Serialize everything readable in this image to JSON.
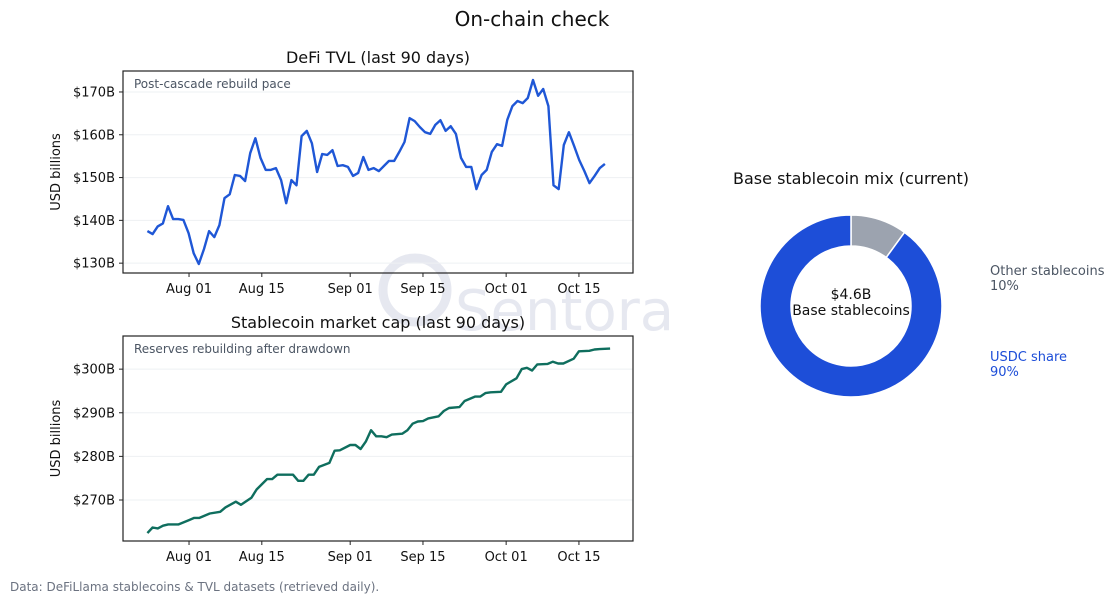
{
  "title": "On-chain check",
  "footer": "Data: DeFiLlama stablecoins & TVL datasets (retrieved daily).",
  "watermark": "Sentora",
  "colors": {
    "tvl": "#1f57d6",
    "stable": "#0f6e5e",
    "usdc": "#1d4ed8",
    "other": "#9ca3af",
    "grid": "#eef0f3"
  },
  "chart_data": [
    {
      "type": "line",
      "title": "DeFi TVL (last 90 days)",
      "annotation": "Post-cascade rebuild pace",
      "ylabel": "USD billions",
      "xlabel": "",
      "start_date": "Jul 24",
      "x_unit": "days since start",
      "xlim": [
        -4.7,
        93.4
      ],
      "ylim": [
        127.7,
        174.9
      ],
      "yticks": [
        130,
        140,
        150,
        160,
        170
      ],
      "ytick_labels": [
        "$130B",
        "$140B",
        "$150B",
        "$160B",
        "$170B"
      ],
      "xticks": [
        8,
        22,
        39,
        53,
        69,
        83
      ],
      "xtick_labels": [
        "Aug 01",
        "Aug 15",
        "Sep 01",
        "Sep 15",
        "Oct 01",
        "Oct 15"
      ],
      "grid": true,
      "series": [
        {
          "name": "DeFi TVL",
          "span_days": 88,
          "values": [
            137.5,
            136.8,
            138.6,
            139.3,
            143.3,
            140.3,
            140.3,
            140.1,
            137.0,
            132.3,
            129.8,
            133.3,
            137.5,
            136.1,
            138.9,
            145.2,
            146.1,
            150.6,
            150.4,
            149.2,
            155.7,
            159.2,
            154.6,
            151.8,
            151.8,
            152.2,
            149.4,
            144.0,
            149.4,
            148.2,
            159.7,
            160.9,
            158.0,
            151.3,
            155.5,
            155.3,
            156.4,
            152.7,
            152.9,
            152.5,
            150.4,
            151.1,
            154.8,
            151.8,
            152.2,
            151.5,
            152.7,
            153.9,
            153.9,
            156.0,
            158.3,
            163.9,
            163.2,
            161.8,
            160.6,
            160.2,
            162.3,
            163.4,
            160.9,
            162.0,
            160.2,
            154.6,
            152.5,
            152.5,
            147.3,
            150.6,
            151.8,
            156.0,
            157.8,
            157.4,
            163.5,
            166.7,
            167.9,
            167.4,
            168.6,
            172.8,
            169.1,
            170.7,
            166.7,
            148.2,
            147.3,
            157.6,
            160.6,
            157.4,
            154.1,
            151.5,
            148.7,
            150.4,
            152.2,
            153.2
          ]
        }
      ]
    },
    {
      "type": "line",
      "title": "Stablecoin market cap (last 90 days)",
      "annotation": "Reserves rebuilding after drawdown",
      "ylabel": "USD billions",
      "xlabel": "",
      "start_date": "Jul 24",
      "x_unit": "days since start",
      "xlim": [
        -4.7,
        93.4
      ],
      "ylim": [
        260.6,
        307.6
      ],
      "yticks": [
        270,
        280,
        290,
        300
      ],
      "ytick_labels": [
        "$270B",
        "$280B",
        "$290B",
        "$300B"
      ],
      "xticks": [
        8,
        22,
        39,
        53,
        69,
        83
      ],
      "xtick_labels": [
        "Aug 01",
        "Aug 15",
        "Sep 01",
        "Sep 15",
        "Oct 01",
        "Oct 15"
      ],
      "grid": true,
      "series": [
        {
          "name": "Stablecoin market cap",
          "points": [
            [
              0,
              262.4
            ],
            [
              1,
              263.7
            ],
            [
              2,
              263.5
            ],
            [
              3,
              264.1
            ],
            [
              4,
              264.4
            ],
            [
              6,
              264.4
            ],
            [
              8,
              265.4
            ],
            [
              9,
              265.9
            ],
            [
              10,
              265.9
            ],
            [
              12,
              266.9
            ],
            [
              14,
              267.3
            ],
            [
              15,
              268.3
            ],
            [
              17,
              269.6
            ],
            [
              18,
              268.9
            ],
            [
              20,
              270.5
            ],
            [
              21,
              272.4
            ],
            [
              23,
              274.8
            ],
            [
              24,
              274.8
            ],
            [
              25,
              275.8
            ],
            [
              28,
              275.8
            ],
            [
              29,
              274.4
            ],
            [
              30,
              274.4
            ],
            [
              31,
              275.8
            ],
            [
              32,
              275.8
            ],
            [
              33,
              277.6
            ],
            [
              35,
              278.5
            ],
            [
              36,
              281.3
            ],
            [
              37,
              281.4
            ],
            [
              39,
              282.6
            ],
            [
              40,
              282.6
            ],
            [
              41,
              281.7
            ],
            [
              42,
              283.4
            ],
            [
              43,
              286.0
            ],
            [
              44,
              284.6
            ],
            [
              45,
              284.6
            ],
            [
              46,
              284.4
            ],
            [
              47,
              285.0
            ],
            [
              49,
              285.2
            ],
            [
              50,
              286.0
            ],
            [
              51,
              287.5
            ],
            [
              52,
              288.0
            ],
            [
              53,
              288.1
            ],
            [
              54,
              288.7
            ],
            [
              56,
              289.2
            ],
            [
              57,
              290.4
            ],
            [
              58,
              291.1
            ],
            [
              60,
              291.3
            ],
            [
              61,
              292.7
            ],
            [
              63,
              293.7
            ],
            [
              64,
              293.7
            ],
            [
              65,
              294.5
            ],
            [
              66,
              294.7
            ],
            [
              68,
              294.8
            ],
            [
              69,
              296.5
            ],
            [
              71,
              297.9
            ],
            [
              72,
              300.0
            ],
            [
              73,
              300.3
            ],
            [
              74,
              299.7
            ],
            [
              75,
              301.1
            ],
            [
              77,
              301.2
            ],
            [
              78,
              301.7
            ],
            [
              79,
              301.3
            ],
            [
              80,
              301.3
            ],
            [
              82,
              302.4
            ],
            [
              83,
              304.1
            ],
            [
              85,
              304.2
            ],
            [
              86,
              304.5
            ],
            [
              87,
              304.6
            ],
            [
              89,
              304.7
            ]
          ]
        }
      ]
    },
    {
      "type": "pie",
      "title": "Base stablecoin mix (current)",
      "center_value": "$4.6B",
      "center_label": "Base stablecoins",
      "slices": [
        {
          "label": "Other stablecoins",
          "value": 10,
          "pct_label": "10%"
        },
        {
          "label": "USDC share",
          "value": 90,
          "pct_label": "90%"
        }
      ]
    }
  ]
}
